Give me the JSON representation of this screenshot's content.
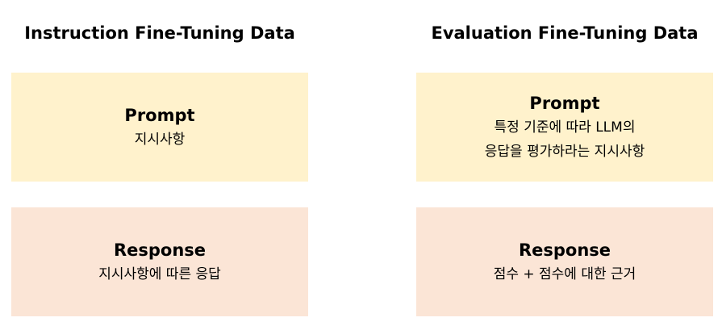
{
  "left": {
    "title": "Instruction Fine-Tuning Data",
    "prompt": {
      "title": "Prompt",
      "lines": [
        "지시사항"
      ]
    },
    "response": {
      "title": "Response",
      "lines": [
        "지시사항에 따른 응답"
      ]
    }
  },
  "right": {
    "title": "Evaluation Fine-Tuning Data",
    "prompt": {
      "title": "Prompt",
      "lines": [
        "특정 기준에 따라 LLM의",
        "응답을 평가하라는 지시사항"
      ]
    },
    "response": {
      "title": "Response",
      "lines": [
        "점수 + 점수에 대한 근거"
      ]
    }
  },
  "colors": {
    "prompt_fill": "#fff2cc",
    "response_fill": "#fbe5d6"
  }
}
